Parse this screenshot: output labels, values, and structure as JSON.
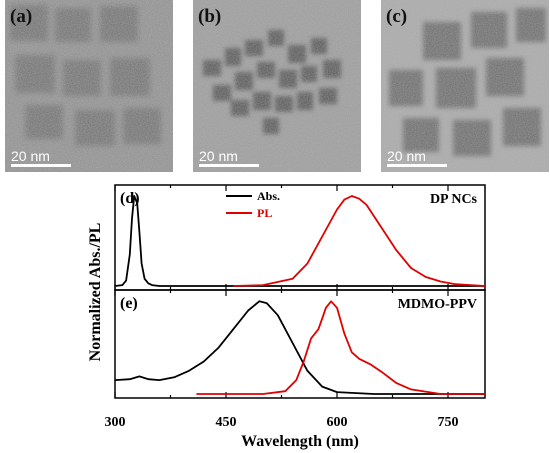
{
  "tem_panels": [
    {
      "label": "(a)",
      "scale_label": "20 nm"
    },
    {
      "label": "(b)",
      "scale_label": "20 nm"
    },
    {
      "label": "(c)",
      "scale_label": "20 nm"
    }
  ],
  "chart_data": [
    {
      "type": "line",
      "panel_label": "(d)",
      "annotation": "DP NCs",
      "ylabel": "Normalized Abs./PL",
      "xlim": [
        300,
        800
      ],
      "ylim": [
        0,
        1.1
      ],
      "legend": {
        "placement": "top-center",
        "entries": [
          "Abs.",
          "PL"
        ]
      },
      "series": [
        {
          "name": "Abs.",
          "color": "#000000",
          "x": [
            300,
            310,
            315,
            320,
            323,
            326,
            330,
            333,
            336,
            340,
            345,
            350,
            360,
            400,
            500,
            600,
            700,
            800
          ],
          "y": [
            0.0,
            0.01,
            0.06,
            0.35,
            0.75,
            1.0,
            0.92,
            0.6,
            0.25,
            0.08,
            0.03,
            0.01,
            0.0,
            0.0,
            0.0,
            0.0,
            0.0,
            0.0
          ]
        },
        {
          "name": "PL",
          "color": "#e00000",
          "x": [
            460,
            500,
            540,
            560,
            580,
            600,
            610,
            620,
            630,
            640,
            660,
            680,
            700,
            720,
            740,
            760,
            800
          ],
          "y": [
            0.0,
            0.01,
            0.08,
            0.25,
            0.55,
            0.85,
            0.96,
            1.0,
            0.97,
            0.9,
            0.65,
            0.4,
            0.2,
            0.1,
            0.05,
            0.02,
            0.0
          ]
        }
      ]
    },
    {
      "type": "line",
      "panel_label": "(e)",
      "annotation": "MDMO-PPV",
      "xlabel": "Wavelength (nm)",
      "xlim": [
        300,
        800
      ],
      "ylim": [
        0,
        1.1
      ],
      "xticks": [
        300,
        450,
        600,
        750
      ],
      "series": [
        {
          "name": "Abs.",
          "color": "#000000",
          "x": [
            300,
            320,
            333,
            345,
            360,
            380,
            400,
            420,
            440,
            460,
            480,
            495,
            505,
            520,
            540,
            560,
            580,
            600,
            650,
            700,
            800
          ],
          "y": [
            0.15,
            0.16,
            0.19,
            0.16,
            0.15,
            0.18,
            0.25,
            0.35,
            0.5,
            0.7,
            0.9,
            1.0,
            0.98,
            0.85,
            0.55,
            0.25,
            0.08,
            0.02,
            0.0,
            0.0,
            0.0
          ]
        },
        {
          "name": "PL",
          "color": "#e00000",
          "x": [
            410,
            500,
            530,
            545,
            555,
            565,
            575,
            585,
            592,
            600,
            610,
            620,
            630,
            645,
            660,
            680,
            700,
            740,
            800
          ],
          "y": [
            0.0,
            0.0,
            0.03,
            0.15,
            0.35,
            0.6,
            0.7,
            0.93,
            1.0,
            0.93,
            0.65,
            0.45,
            0.38,
            0.32,
            0.24,
            0.12,
            0.05,
            0.0,
            0.0
          ]
        }
      ]
    }
  ]
}
